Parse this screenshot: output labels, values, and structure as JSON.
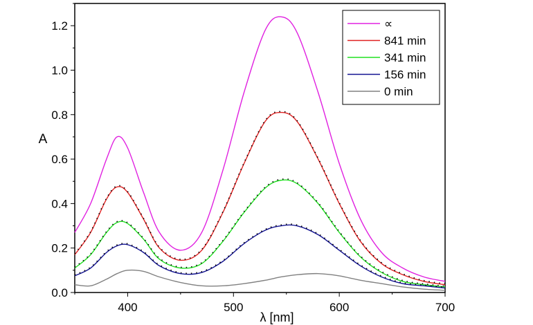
{
  "chart_data": {
    "type": "line",
    "title": "",
    "xlabel": "λ [nm]",
    "ylabel": "A",
    "xlim": [
      350,
      700
    ],
    "ylim": [
      0,
      1.3
    ],
    "xticks": [
      400,
      500,
      600,
      700
    ],
    "xtick_labels": [
      "400",
      "500",
      "600",
      "700"
    ],
    "yticks": [
      0,
      0.2,
      0.4,
      0.6,
      0.8,
      1.0,
      1.2
    ],
    "ytick_labels": [
      "0.0",
      "0.2",
      "0.4",
      "0.6",
      "0.8",
      "1.0",
      "1.2"
    ],
    "grid": false,
    "legend_position": "top-right",
    "x": [
      350,
      365,
      380,
      390,
      400,
      415,
      430,
      450,
      470,
      490,
      510,
      530,
      545,
      560,
      580,
      600,
      620,
      640,
      660,
      680,
      700
    ],
    "series": [
      {
        "name": "∝",
        "color": "#e020e0",
        "fit": false,
        "values": [
          0.27,
          0.4,
          0.6,
          0.7,
          0.65,
          0.45,
          0.27,
          0.19,
          0.27,
          0.55,
          0.9,
          1.18,
          1.24,
          1.17,
          0.9,
          0.58,
          0.33,
          0.18,
          0.11,
          0.07,
          0.05
        ]
      },
      {
        "name": "841 min",
        "color": "#e02020",
        "fit": true,
        "values": [
          0.17,
          0.27,
          0.42,
          0.475,
          0.45,
          0.33,
          0.2,
          0.145,
          0.19,
          0.36,
          0.58,
          0.77,
          0.81,
          0.77,
          0.6,
          0.4,
          0.23,
          0.13,
          0.08,
          0.05,
          0.035
        ]
      },
      {
        "name": "341 min",
        "color": "#20e020",
        "fit": true,
        "values": [
          0.11,
          0.17,
          0.27,
          0.315,
          0.31,
          0.24,
          0.15,
          0.11,
          0.13,
          0.23,
          0.36,
          0.47,
          0.505,
          0.49,
          0.4,
          0.27,
          0.16,
          0.09,
          0.05,
          0.035,
          0.025
        ]
      },
      {
        "name": "156 min",
        "color": "#101090",
        "fit": true,
        "values": [
          0.075,
          0.11,
          0.18,
          0.21,
          0.215,
          0.18,
          0.12,
          0.085,
          0.09,
          0.14,
          0.22,
          0.28,
          0.3,
          0.3,
          0.26,
          0.19,
          0.12,
          0.07,
          0.04,
          0.03,
          0.02
        ]
      },
      {
        "name": "0 min",
        "color": "#808080",
        "fit": false,
        "values": [
          0.035,
          0.03,
          0.06,
          0.085,
          0.1,
          0.095,
          0.07,
          0.045,
          0.03,
          0.03,
          0.04,
          0.055,
          0.07,
          0.08,
          0.085,
          0.075,
          0.055,
          0.04,
          0.025,
          0.015,
          0.01
        ]
      }
    ]
  }
}
